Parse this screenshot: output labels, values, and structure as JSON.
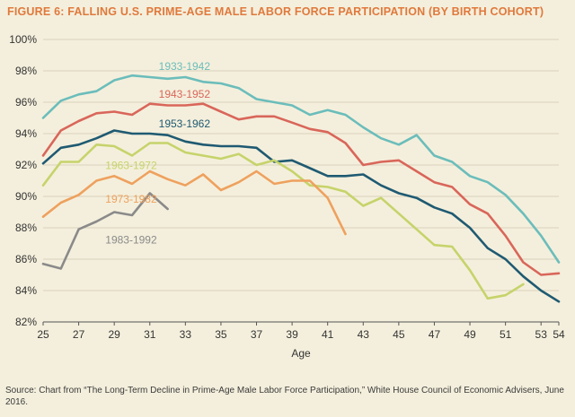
{
  "title": "FIGURE 6: FALLING U.S. PRIME-AGE MALE LABOR FORCE PARTICIPATION (BY BIRTH COHORT)",
  "source": "Source: Chart from “The Long-Term Decline in Prime-Age Male Labor Force Participation,” White House Council of Economic Advisers, June 2016.",
  "chart_data": {
    "type": "line",
    "title": "FIGURE 6: FALLING U.S. PRIME-AGE MALE LABOR FORCE PARTICIPATION (BY BIRTH COHORT)",
    "xlabel": "Age",
    "ylabel": "",
    "xlim": [
      25,
      54
    ],
    "ylim": [
      82,
      100
    ],
    "x_ticks": [
      25,
      27,
      29,
      31,
      33,
      35,
      37,
      39,
      41,
      43,
      45,
      47,
      49,
      51,
      53,
      54
    ],
    "y_ticks": [
      82,
      84,
      86,
      88,
      90,
      92,
      94,
      96,
      98,
      100
    ],
    "y_tick_labels": [
      "82%",
      "84%",
      "86%",
      "88%",
      "90%",
      "92%",
      "94%",
      "96%",
      "98%",
      "100%"
    ],
    "grid": "horizontal",
    "series": [
      {
        "name": "1933-1942",
        "color": "#6bbdbb",
        "x": [
          25,
          26,
          27,
          28,
          29,
          30,
          31,
          32,
          33,
          34,
          35,
          36,
          37,
          38,
          39,
          40,
          41,
          42,
          43,
          44,
          45,
          46,
          47,
          48,
          49,
          50,
          51,
          52,
          53,
          54
        ],
        "values": [
          95.0,
          96.1,
          96.5,
          96.7,
          97.4,
          97.7,
          97.6,
          97.5,
          97.6,
          97.3,
          97.2,
          96.9,
          96.2,
          96.0,
          95.8,
          95.2,
          95.5,
          95.2,
          94.4,
          93.7,
          93.3,
          93.9,
          92.6,
          92.2,
          91.3,
          90.9,
          90.1,
          88.9,
          87.5,
          85.8
        ]
      },
      {
        "name": "1943-1952",
        "color": "#d9665a",
        "x": [
          25,
          26,
          27,
          28,
          29,
          30,
          31,
          32,
          33,
          34,
          35,
          36,
          37,
          38,
          39,
          40,
          41,
          42,
          43,
          44,
          45,
          46,
          47,
          48,
          49,
          50,
          51,
          52,
          53,
          54
        ],
        "values": [
          92.6,
          94.2,
          94.8,
          95.3,
          95.4,
          95.2,
          95.9,
          95.8,
          95.8,
          95.9,
          95.4,
          94.9,
          95.1,
          95.1,
          94.7,
          94.3,
          94.1,
          93.4,
          92.0,
          92.2,
          92.3,
          91.6,
          90.9,
          90.6,
          89.5,
          88.9,
          87.5,
          85.8,
          85.0,
          85.1
        ]
      },
      {
        "name": "1953-1962",
        "color": "#1f5a72",
        "x": [
          25,
          26,
          27,
          28,
          29,
          30,
          31,
          32,
          33,
          34,
          35,
          36,
          37,
          38,
          39,
          40,
          41,
          42,
          43,
          44,
          45,
          46,
          47,
          48,
          49,
          50,
          51,
          52,
          53,
          54
        ],
        "values": [
          92.1,
          93.1,
          93.3,
          93.7,
          94.2,
          94.0,
          94.0,
          93.9,
          93.5,
          93.3,
          93.2,
          93.2,
          93.1,
          92.2,
          92.3,
          91.8,
          91.3,
          91.3,
          91.4,
          90.7,
          90.2,
          89.9,
          89.3,
          88.9,
          88.0,
          86.7,
          86.0,
          84.9,
          84.0,
          83.3
        ]
      },
      {
        "name": "1963-1972",
        "color": "#c6d36b",
        "x": [
          25,
          26,
          27,
          28,
          29,
          30,
          31,
          32,
          33,
          34,
          35,
          36,
          37,
          38,
          39,
          40,
          41,
          42,
          43,
          44,
          45,
          46,
          47,
          48,
          49,
          50,
          51,
          52
        ],
        "values": [
          90.7,
          92.2,
          92.2,
          93.3,
          93.2,
          92.6,
          93.4,
          93.4,
          92.8,
          92.6,
          92.4,
          92.7,
          92.0,
          92.3,
          91.6,
          90.7,
          90.6,
          90.3,
          89.4,
          89.9,
          88.9,
          87.9,
          86.9,
          86.8,
          85.3,
          83.5,
          83.7,
          84.4
        ]
      },
      {
        "name": "1973-1982",
        "color": "#eea15e",
        "x": [
          25,
          26,
          27,
          28,
          29,
          30,
          31,
          32,
          33,
          34,
          35,
          36,
          37,
          38,
          39,
          40,
          41,
          42
        ],
        "values": [
          88.7,
          89.6,
          90.1,
          91.0,
          91.3,
          90.8,
          91.6,
          91.1,
          90.7,
          91.4,
          90.4,
          90.9,
          91.6,
          90.8,
          91.0,
          91.0,
          89.9,
          87.6
        ]
      },
      {
        "name": "1983-1992",
        "color": "#8a8a8a",
        "x": [
          25,
          26,
          27,
          28,
          29,
          30,
          31,
          32
        ],
        "values": [
          85.7,
          85.4,
          87.9,
          88.4,
          89.0,
          88.8,
          90.2,
          89.2
        ]
      }
    ]
  }
}
